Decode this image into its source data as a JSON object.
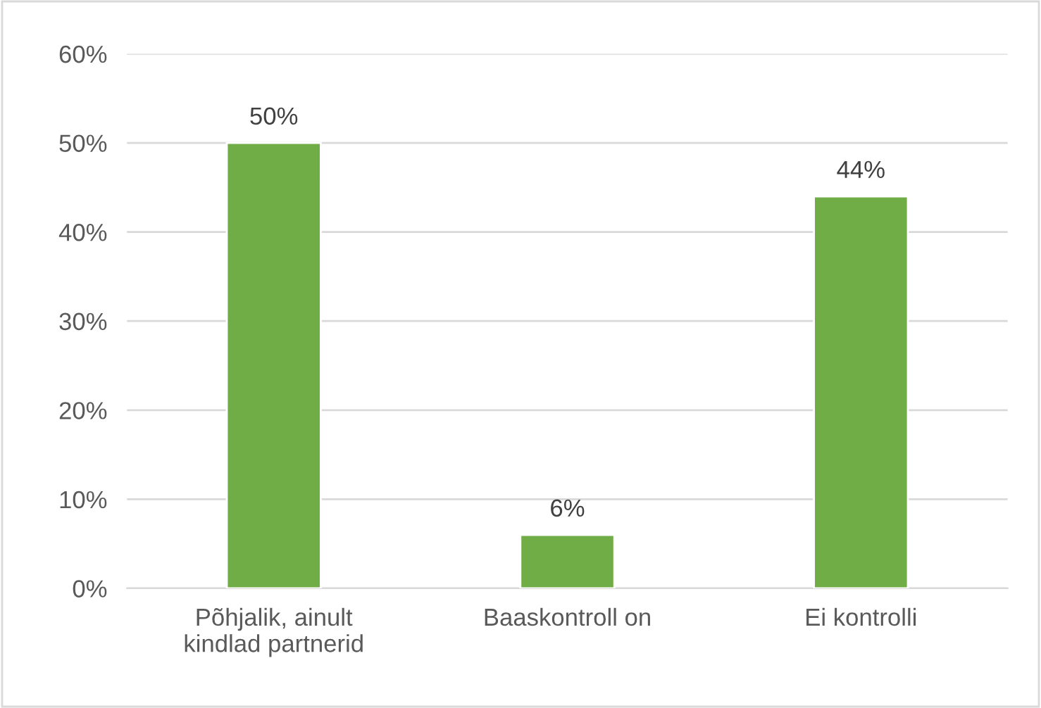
{
  "chart_data": {
    "type": "bar",
    "categories": [
      "Põhjalik, ainult\nkindlad partnerid",
      "Baaskontroll on",
      "Ei kontrolli"
    ],
    "values": [
      50,
      6,
      44
    ],
    "value_labels": [
      "50%",
      "6%",
      "44%"
    ],
    "color": "#70ad47",
    "ylim": [
      0,
      60
    ],
    "yticks": [
      {
        "value": 0,
        "label": "0%"
      },
      {
        "value": 10,
        "label": "10%"
      },
      {
        "value": 20,
        "label": "20%"
      },
      {
        "value": 30,
        "label": "30%"
      },
      {
        "value": 40,
        "label": "40%"
      },
      {
        "value": 50,
        "label": "50%"
      },
      {
        "value": 60,
        "label": "60%"
      }
    ],
    "grid": "y",
    "legend": false
  }
}
